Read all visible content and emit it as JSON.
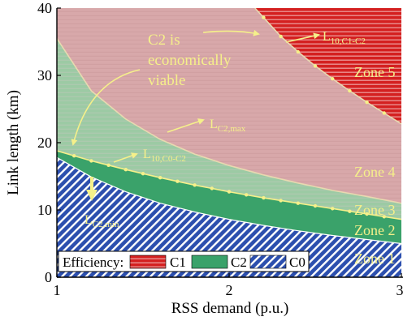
{
  "chart_data": {
    "type": "area",
    "xlabel": "RSS demand (p.u.)",
    "ylabel": "Link length (km)",
    "xlim": [
      1,
      3
    ],
    "ylim": [
      0,
      40
    ],
    "xticks": [
      "1",
      "2",
      "3"
    ],
    "yticks": [
      "0",
      "10",
      "20",
      "30",
      "40"
    ],
    "colors": {
      "C1": "#d42020",
      "C1_stripe": "#f0b0b0",
      "C2": "#3aa26a",
      "C0": "#2c4fae",
      "C0_stripe": "#ffffff",
      "zone4_fill": "#d8a8aa",
      "zone3_fill": "#9ccaa4",
      "zone3_stripe": "#c8c8c0",
      "highlight": "#f5f08a",
      "axis": "#000000"
    },
    "curves": {
      "L_C2_min": {
        "x": [
          1.0,
          1.2,
          1.4,
          1.6,
          1.8,
          2.0,
          2.2,
          2.4,
          2.6,
          2.8,
          3.0
        ],
        "y": [
          17.8,
          14.9,
          12.7,
          11.0,
          9.7,
          8.6,
          7.7,
          6.9,
          6.2,
          5.6,
          5.0
        ]
      },
      "L_10_C0_C2": {
        "x": [
          1.0,
          1.2,
          1.4,
          1.6,
          1.8,
          2.0,
          2.2,
          2.4,
          2.6,
          2.8,
          3.0
        ],
        "y": [
          18.8,
          17.3,
          16.0,
          14.8,
          13.7,
          12.7,
          11.8,
          11.0,
          10.2,
          9.4,
          8.6
        ]
      },
      "L_C2_max": {
        "x": [
          1.0,
          1.2,
          1.4,
          1.6,
          1.8,
          2.0,
          2.2,
          2.4,
          2.6,
          2.8,
          3.0
        ],
        "y": [
          35.5,
          27.7,
          23.5,
          20.5,
          18.3,
          16.6,
          15.2,
          14.0,
          12.9,
          12.0,
          11.0
        ]
      },
      "L_10_C1_C2": {
        "x": [
          2.15,
          2.3,
          2.4,
          2.5,
          2.6,
          2.7,
          2.8,
          2.9,
          3.0
        ],
        "y": [
          40.0,
          35.8,
          33.5,
          31.4,
          29.5,
          27.7,
          26.0,
          24.4,
          22.8
        ]
      }
    },
    "curve_labels": [
      {
        "curve": "L_C2_max",
        "main": "L",
        "sub": "C2,max"
      },
      {
        "curve": "L_10_C1_C2",
        "main": "L",
        "sub": "10,C1-C2"
      },
      {
        "curve": "L_10_C0_C2",
        "main": "L",
        "sub": "10,C0-C2"
      },
      {
        "curve": "L_C2_min",
        "main": "L",
        "sub": "C2,min"
      }
    ],
    "annotations": [
      {
        "lines": [
          "C2 is",
          "economically",
          "viable"
        ]
      }
    ],
    "zones": [
      "Zone 5",
      "Zone 4",
      "Zone 3",
      "Zone 2",
      "Zone 1"
    ],
    "legend": {
      "title": "Efficiency:",
      "placement": "bottom-left",
      "entries": [
        "C1",
        "C2",
        "C0"
      ]
    }
  }
}
